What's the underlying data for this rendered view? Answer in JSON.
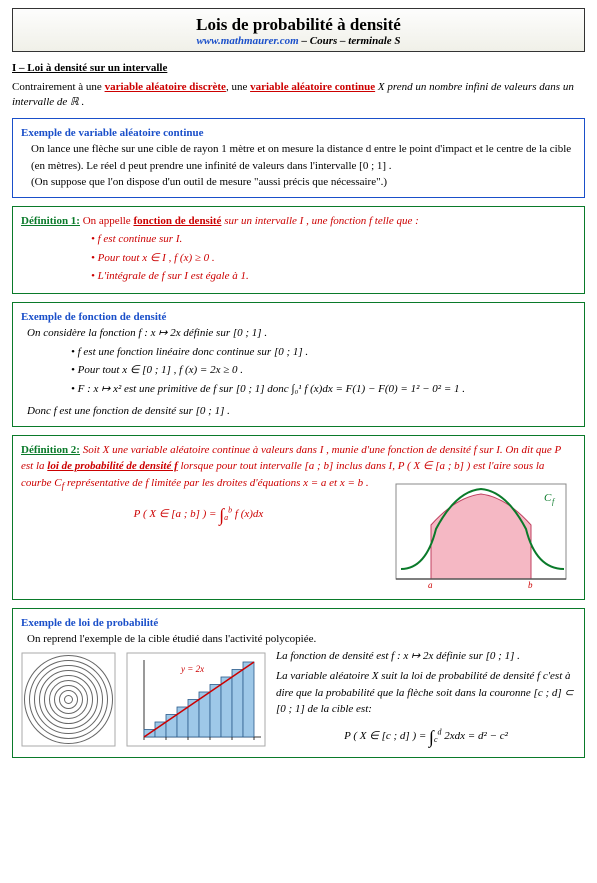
{
  "title": "Lois de probabilité à densité",
  "site": "www.mathmaurer.com",
  "subtitle_suffix": " – Cours – terminale S",
  "section1": "I – Loi à densité sur un intervalle",
  "intro_a": "Contrairement à une ",
  "intro_link1": "variable aléatoire discrète",
  "intro_b": ", une ",
  "intro_link2": "variable aléatoire continue",
  "intro_c": " X prend un nombre infini de valeurs dans un intervalle de ℝ .",
  "ex1_title": "Exemple de variable aléatoire continue",
  "ex1_l1": "On lance une flèche sur une cible de rayon 1 mètre et on mesure la distance d entre le point d'impact et le centre de la cible (en mètres). Le réel d peut prendre une infinité de valeurs dans l'intervalle [0 ; 1] .",
  "ex1_l2": "(On suppose que l'on dispose d'un outil de mesure \"aussi précis que nécessaire\".)",
  "def1_label": "Définition 1:",
  "def1_text_a": " On appelle ",
  "def1_underline": "fonction de densité",
  "def1_text_b": " sur un intervalle I , une fonction f telle que :",
  "def1_b1": "f est continue sur I.",
  "def1_b2": "Pour tout x ∈ I , f (x) ≥ 0 .",
  "def1_b3": "L'intégrale de f sur I est égale à 1.",
  "ex2_title": "Exemple de fonction de densité",
  "ex2_intro": "On considère la fonction f : x ↦ 2x définie sur [0 ; 1] .",
  "ex2_b1": "f est une fonction linéaire donc continue sur [0 ; 1] .",
  "ex2_b2": "Pour tout x ∈ [0 ; 1] , f (x) = 2x ≥ 0 .",
  "ex2_b3": "F : x ↦ x² est une primitive de f sur [0 ; 1] donc ∫₀¹ f (x)dx = F(1) − F(0) = 1² − 0² = 1 .",
  "ex2_conc": "Donc f est une fonction de densité sur [0 ; 1] .",
  "def2_label": "Définition 2:",
  "def2_a": " Soit X une variable aléatoire continue à valeurs dans I , munie d'une fonction de densité f sur I. On dit que P est la ",
  "def2_underline": "loi de probabilité de densité f",
  "def2_b": " lorsque pour tout intervalle [a ; b] inclus dans I, P ( X ∈ [a ; b] ) est l'aire sous la courbe C",
  "def2_b2": " représentative de f limitée par les droites d'équations x = a et x = b .",
  "def2_formula": "P ( X ∈ [a ; b] ) = ∫ₐᵇ f (x)dx",
  "ex3_title": "Exemple de loi de probabilité",
  "ex3_intro": "On reprend l'exemple de la cible étudié dans l'activité polycopiée.",
  "ex3_p1": "La fonction de densité est f : x ↦ 2x définie sur [0 ; 1] .",
  "ex3_p2": "La variable aléatoire X suit la loi de probabilité de densité f c'est à dire que la probabilité que la flèche soit dans la couronne [c ; d] ⊂ [0 ; 1] de la cible est:",
  "ex3_formula": "P ( X ∈ [c ; d] ) = ∫꜀ᵈ 2xdx = d² − c²",
  "fig_def2": {
    "curve_color": "#0a7a2a",
    "fill_color": "#f5b8c4",
    "axis_color": "#555",
    "label_cf": "Cf",
    "label_a": "a",
    "label_b": "b"
  },
  "fig_target": {
    "rings": 9,
    "stroke": "#666"
  },
  "fig_hist": {
    "line_color": "#c00",
    "bar_color": "#9ec8e8",
    "bar_edge": "#2a5a8a",
    "label": "y = 2x",
    "n_bars": 10
  }
}
